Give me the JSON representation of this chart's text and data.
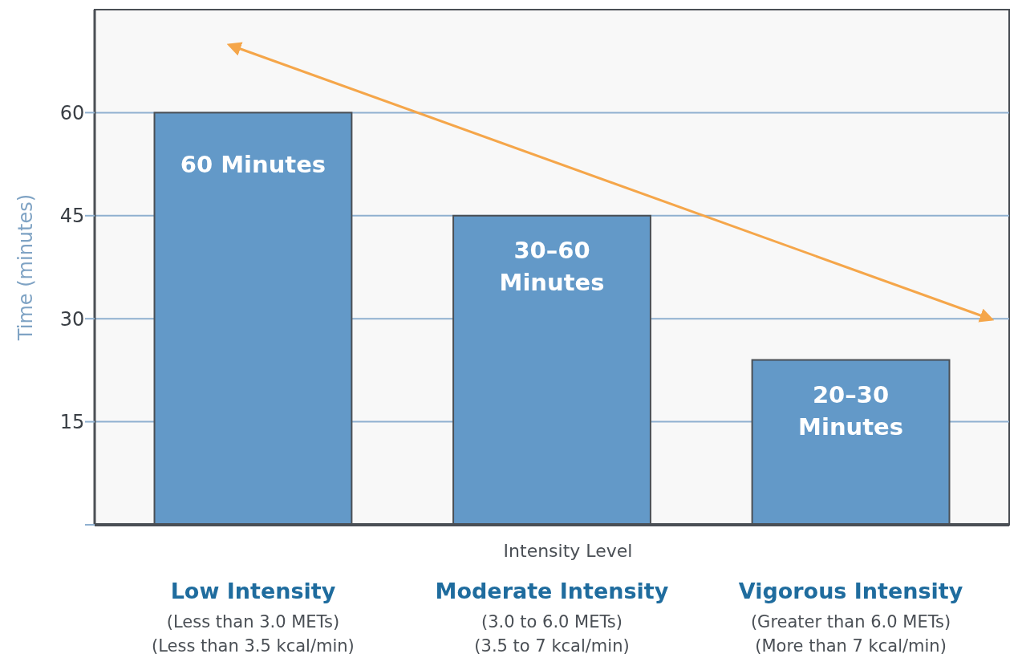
{
  "chart_data": {
    "type": "bar",
    "xlabel": "Intensity Level",
    "ylabel": "Time (minutes)",
    "categories": [
      "Low Intensity\n(Less than 3.0 METs)\n(Less than 3.5 kcal/min)",
      "Moderate Intensity\n(3.0 to 6.0 METs)\n(3.5 to 7 kcal/min)",
      "Vigorous Intensity\n(Greater than 6.0 METs)\n(More than 7 kcal/min)"
    ],
    "values": [
      60,
      45,
      24
    ],
    "value_labels": [
      "60 Minutes",
      "30–60 Minutes",
      "20–30 Minutes"
    ],
    "color": "#6399c8",
    "ylim": [
      0,
      75
    ],
    "yticks": [
      {
        "value": 0,
        "label": null
      },
      15,
      30,
      45,
      60
    ],
    "grid": "y"
  }
}
